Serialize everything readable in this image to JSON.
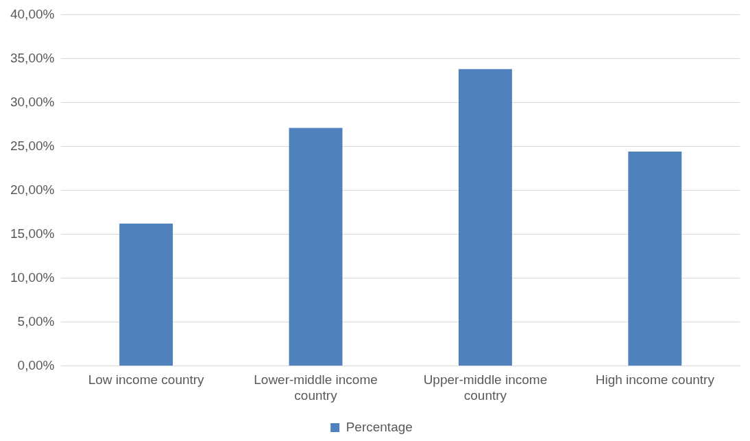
{
  "chart_data": {
    "type": "bar",
    "categories": [
      "Low income country",
      "Lower-middle income country",
      "Upper-middle income country",
      "High income country"
    ],
    "series": [
      {
        "name": "Percentage",
        "color": "#4f81bd",
        "values": [
          16.2,
          27.1,
          33.8,
          24.4
        ]
      }
    ],
    "ylim": [
      0,
      40
    ],
    "yticks": [
      {
        "value": 0,
        "label": "0,00%"
      },
      {
        "value": 5,
        "label": "5,00%"
      },
      {
        "value": 10,
        "label": "10,00%"
      },
      {
        "value": 15,
        "label": "15,00%"
      },
      {
        "value": 20,
        "label": "20,00%"
      },
      {
        "value": 25,
        "label": "25,00%"
      },
      {
        "value": 30,
        "label": "30,00%"
      },
      {
        "value": 35,
        "label": "35,00%"
      },
      {
        "value": 40,
        "label": "40,00%"
      }
    ],
    "grid": "y",
    "legend": "bottom"
  }
}
